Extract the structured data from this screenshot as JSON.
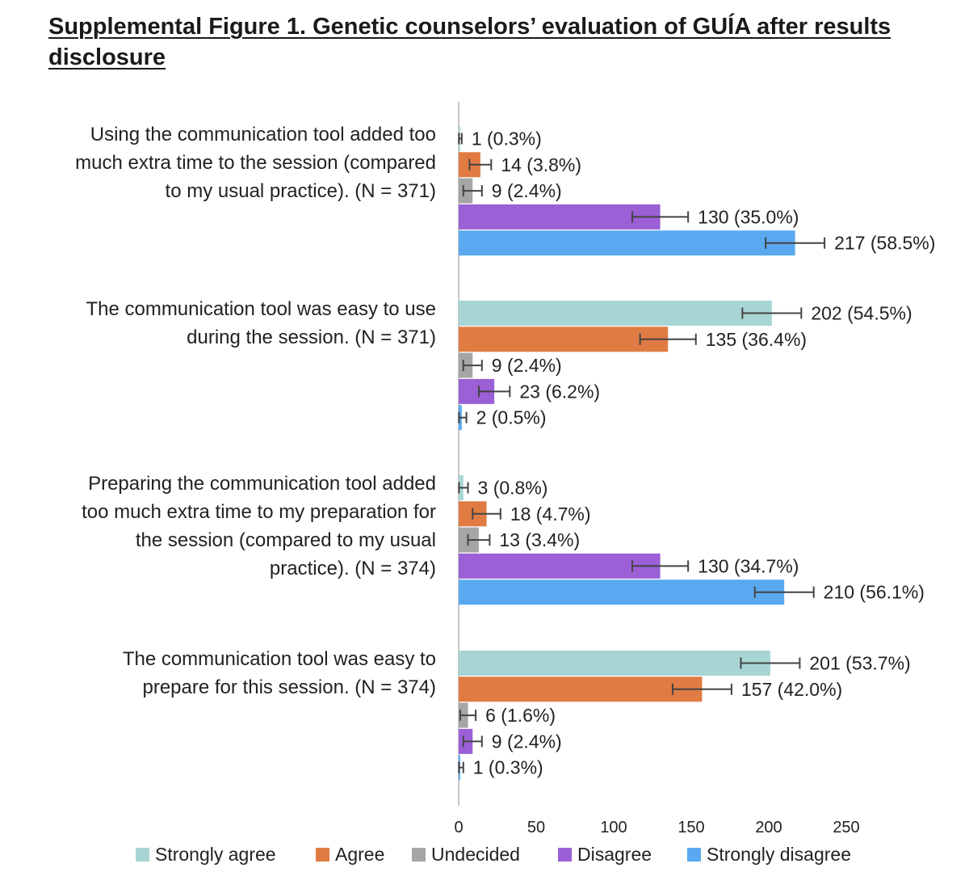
{
  "title": "Supplemental Figure 1. Genetic counselors’ evaluation of GUÍA after results disclosure",
  "chart_data": {
    "type": "bar",
    "orientation": "horizontal",
    "title": "Supplemental Figure 1. Genetic counselors’ evaluation of GUÍA after results disclosure",
    "xlabel": "",
    "ylabel": "",
    "xlim": [
      0,
      250
    ],
    "x_ticks": [
      0,
      50,
      100,
      150,
      200,
      250
    ],
    "grid": false,
    "legend_position": "bottom",
    "error_bars": true,
    "series": [
      {
        "name": "Strongly agree",
        "color": "#a6d5d4"
      },
      {
        "name": "Agree",
        "color": "#e07b43"
      },
      {
        "name": "Undecided",
        "color": "#a6a6a6"
      },
      {
        "name": "Disagree",
        "color": "#9b5fd6"
      },
      {
        "name": "Strongly disagree",
        "color": "#5aa9f0"
      }
    ],
    "categories": [
      {
        "label_lines": [
          "Using the communication tool added too",
          "much extra time to the session (compared",
          "to my usual practice). (N = 371)"
        ],
        "values": [
          1,
          14,
          9,
          130,
          217
        ],
        "error": [
          1,
          7,
          6,
          18,
          19
        ],
        "labels": [
          "1 (0.3%)",
          "14 (3.8%)",
          "9 (2.4%)",
          "130 (35.0%)",
          "217 (58.5%)"
        ]
      },
      {
        "label_lines": [
          "The communication tool was easy to use",
          "during the session. (N = 371)"
        ],
        "values": [
          202,
          135,
          9,
          23,
          2
        ],
        "error": [
          19,
          18,
          6,
          10,
          3
        ],
        "labels": [
          "202 (54.5%)",
          "135 (36.4%)",
          "9 (2.4%)",
          "23 (6.2%)",
          "2 (0.5%)"
        ]
      },
      {
        "label_lines": [
          "Preparing the communication tool added",
          "too much extra time to my preparation for",
          "the session (compared to my usual",
          "practice). (N = 374)"
        ],
        "values": [
          3,
          18,
          13,
          130,
          210
        ],
        "error": [
          3,
          9,
          7,
          18,
          19
        ],
        "labels": [
          "3 (0.8%)",
          "18 (4.7%)",
          "13 (3.4%)",
          "130 (34.7%)",
          "210 (56.1%)"
        ]
      },
      {
        "label_lines": [
          "The communication tool was easy to",
          "prepare for this session. (N = 374)"
        ],
        "values": [
          201,
          157,
          6,
          9,
          1
        ],
        "error": [
          19,
          19,
          5,
          6,
          2
        ],
        "labels": [
          "201 (53.7%)",
          "157 (42.0%)",
          "6 (1.6%)",
          "9 (2.4%)",
          "1 (0.3%)"
        ]
      }
    ]
  }
}
